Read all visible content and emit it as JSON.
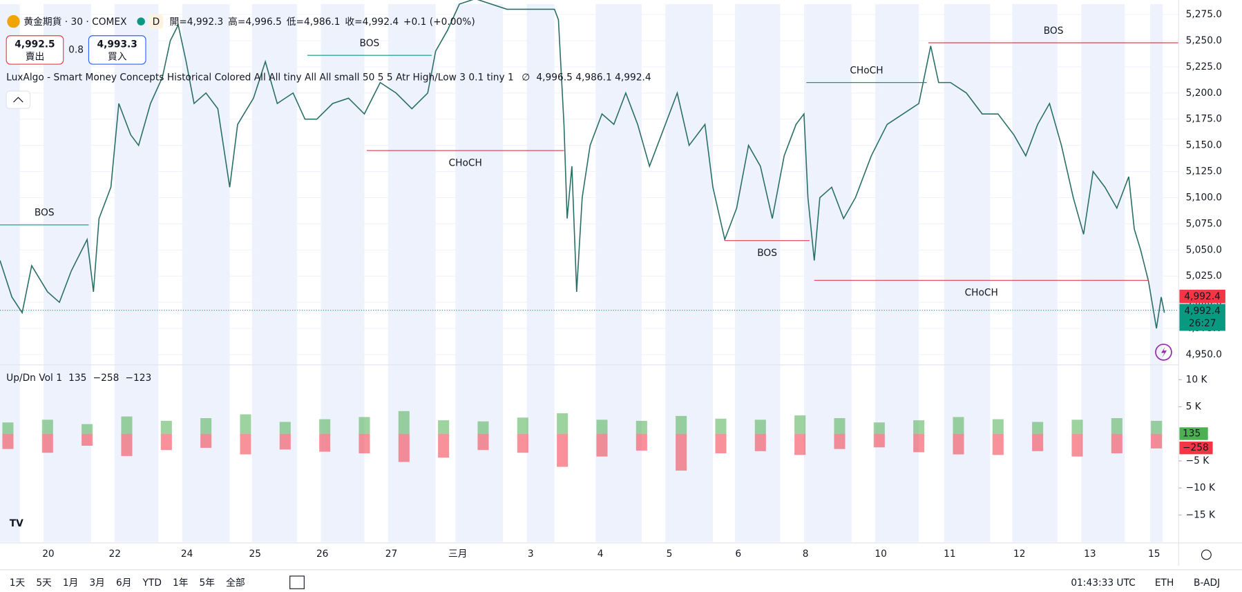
{
  "header": {
    "symbol": "黄金期貨 · 30 · COMEX",
    "badge": "D",
    "ohlc": [
      {
        "label": "開=",
        "value": "4,992.3"
      },
      {
        "label": "高=",
        "value": "4,996.5"
      },
      {
        "label": "低=",
        "value": "4,986.1"
      },
      {
        "label": "收=",
        "value": "4,992.4"
      }
    ],
    "change": "+0.1 (+0.00%)",
    "sell": {
      "price": "4,992.5",
      "label": "賣出"
    },
    "spread": "0.8",
    "buy": {
      "price": "4,993.3",
      "label": "買入"
    }
  },
  "indicator": {
    "text": "LuxAlgo - Smart Money Concepts Historical Colored All All tiny All All small 50 5 5 Atr High/Low 3 0.1 tiny 1",
    "symbol": "∅",
    "values": "4,996.5  4,986.1  4,992.4"
  },
  "price_chart": {
    "type": "line",
    "color": "#2a6f67",
    "xlim": [
      0,
      1488
    ],
    "ylim": [
      4941,
      5285
    ],
    "yticks": [
      {
        "value": 4950,
        "label": "4,950.0"
      },
      {
        "value": 4975,
        "label": "4,975.0"
      },
      {
        "value": 5000,
        "label": "5,000.0"
      },
      {
        "value": 5025,
        "label": "5,025.0"
      },
      {
        "value": 5050,
        "label": "5,050.0"
      },
      {
        "value": 5075,
        "label": "5,075.0"
      },
      {
        "value": 5100,
        "label": "5,100.0"
      },
      {
        "value": 5125,
        "label": "5,125.0"
      },
      {
        "value": 5150,
        "label": "5,150.0"
      },
      {
        "value": 5175,
        "label": "5,175.0"
      },
      {
        "value": 5200,
        "label": "5,200.0"
      },
      {
        "value": 5225,
        "label": "5,225.0"
      },
      {
        "value": 5250,
        "label": "5,250.0"
      },
      {
        "value": 5275,
        "label": "5,275.0"
      }
    ],
    "xticks": [
      {
        "value": 61,
        "label": "20"
      },
      {
        "value": 145,
        "label": "22"
      },
      {
        "value": 236,
        "label": "24"
      },
      {
        "value": 322,
        "label": "25"
      },
      {
        "value": 407,
        "label": "26"
      },
      {
        "value": 494,
        "label": "27"
      },
      {
        "value": 578,
        "label": "三月"
      },
      {
        "value": 670,
        "label": "3"
      },
      {
        "value": 758,
        "label": "4"
      },
      {
        "value": 845,
        "label": "5"
      },
      {
        "value": 932,
        "label": "6"
      },
      {
        "value": 1017,
        "label": "8"
      },
      {
        "value": 1112,
        "label": "10"
      },
      {
        "value": 1199,
        "label": "11"
      },
      {
        "value": 1287,
        "label": "12"
      },
      {
        "value": 1376,
        "label": "13"
      },
      {
        "value": 1457,
        "label": "15"
      }
    ],
    "x": [
      0,
      15,
      28,
      40,
      60,
      75,
      90,
      110,
      118,
      125,
      140,
      150,
      165,
      175,
      190,
      205,
      215,
      225,
      235,
      245,
      260,
      275,
      290,
      300,
      320,
      335,
      350,
      370,
      385,
      400,
      420,
      440,
      460,
      480,
      500,
      520,
      540,
      550,
      565,
      580,
      600,
      640,
      700,
      705,
      712,
      716,
      722,
      728,
      735,
      745,
      760,
      775,
      790,
      805,
      820,
      835,
      855,
      870,
      890,
      900,
      915,
      930,
      945,
      960,
      975,
      990,
      1005,
      1015,
      1020,
      1028,
      1035,
      1050,
      1065,
      1080,
      1100,
      1120,
      1140,
      1160,
      1175,
      1185,
      1200,
      1220,
      1240,
      1260,
      1280,
      1295,
      1310,
      1325,
      1340,
      1355,
      1368,
      1380,
      1395,
      1410,
      1425,
      1432,
      1440,
      1450,
      1460,
      1466,
      1470
    ],
    "values": [
      5040,
      5005,
      4990,
      5035,
      5010,
      5000,
      5030,
      5060,
      5010,
      5080,
      5110,
      5190,
      5160,
      5150,
      5190,
      5215,
      5250,
      5265,
      5230,
      5190,
      5200,
      5185,
      5110,
      5170,
      5195,
      5230,
      5190,
      5200,
      5175,
      5175,
      5190,
      5195,
      5180,
      5210,
      5200,
      5185,
      5200,
      5240,
      5260,
      5285,
      5290,
      5280,
      5280,
      5270,
      5170,
      5080,
      5130,
      5010,
      5100,
      5150,
      5180,
      5170,
      5200,
      5170,
      5130,
      5160,
      5200,
      5150,
      5170,
      5110,
      5060,
      5090,
      5150,
      5130,
      5080,
      5140,
      5170,
      5180,
      5100,
      5040,
      5100,
      5110,
      5080,
      5100,
      5140,
      5170,
      5180,
      5190,
      5245,
      5210,
      5210,
      5200,
      5180,
      5180,
      5160,
      5140,
      5170,
      5190,
      5150,
      5100,
      5065,
      5125,
      5110,
      5090,
      5120,
      5070,
      5050,
      5020,
      4975,
      5005,
      4990
    ],
    "structures": [
      {
        "label": "BOS",
        "x1": 0,
        "x2": 112,
        "price": 5074,
        "color": "#089981",
        "label_pos": "above"
      },
      {
        "label": "BOS",
        "x1": 388,
        "x2": 545,
        "price": 5236,
        "color": "#089981",
        "label_pos": "above"
      },
      {
        "label": "CHoCH",
        "x1": 463,
        "x2": 712,
        "price": 5145,
        "color": "#e03d4e",
        "label_pos": "below"
      },
      {
        "label": "BOS",
        "x1": 915,
        "x2": 1022,
        "price": 5059,
        "color": "#e03d4e",
        "label_pos": "below"
      },
      {
        "label": "CHoCH",
        "x1": 1018,
        "x2": 1170,
        "price": 5210,
        "color": "#089981",
        "label_pos": "above"
      },
      {
        "label": "CHoCH",
        "x1": 1028,
        "x2": 1450,
        "price": 5021,
        "color": "#e03d4e",
        "label_pos": "below"
      },
      {
        "label": "BOS",
        "x1": 1172,
        "x2": 1488,
        "price": 5248,
        "color": "#e03d4e",
        "label_pos": "above"
      }
    ],
    "last": {
      "value": 4992.4,
      "bid_label": "4,992.4",
      "label": "4,992.4",
      "countdown": "26:27"
    }
  },
  "volume_chart": {
    "title": "Up/Dn Vol 1",
    "values_text": [
      "135",
      "−258",
      "−123"
    ],
    "ylim": [
      -20000,
      12600
    ],
    "yticks": [
      {
        "value": 10000,
        "label": "10 K"
      },
      {
        "value": 5000,
        "label": "5 K"
      },
      {
        "value": -5000,
        "label": "−5 K"
      },
      {
        "value": -10000,
        "label": "−10 K"
      },
      {
        "value": -15000,
        "label": "−15 K"
      }
    ],
    "x": [
      10,
      60,
      110,
      160,
      210,
      260,
      310,
      360,
      410,
      460,
      510,
      560,
      610,
      660,
      710,
      760,
      810,
      860,
      910,
      960,
      1010,
      1060,
      1110,
      1160,
      1210,
      1260,
      1310,
      1360,
      1410,
      1460
    ],
    "series": [
      {
        "name": "Up",
        "color": "#4caf50",
        "values": [
          2100,
          2600,
          1800,
          3200,
          2400,
          2900,
          3600,
          2200,
          2700,
          3100,
          4200,
          2500,
          2300,
          3000,
          3800,
          2600,
          2400,
          3300,
          2800,
          2600,
          3400,
          2900,
          2100,
          2500,
          3100,
          2700,
          2200,
          2600,
          2900,
          2400
        ]
      },
      {
        "name": "Down",
        "color": "#f23645",
        "values": [
          -2800,
          -3500,
          -2200,
          -4100,
          -3000,
          -2600,
          -3800,
          -2900,
          -3300,
          -3600,
          -5200,
          -4400,
          -3000,
          -3500,
          -6100,
          -4200,
          -3100,
          -6800,
          -3600,
          -3200,
          -3900,
          -2800,
          -2500,
          -3400,
          -3800,
          -3900,
          -3200,
          -4200,
          -3600,
          -2700
        ]
      }
    ],
    "last_up": "135",
    "last_down": "−258"
  },
  "toolbar": {
    "ranges": [
      "1天",
      "5天",
      "1月",
      "3月",
      "6月",
      "YTD",
      "1年",
      "5年",
      "全部"
    ],
    "clock": "01:43:33 UTC",
    "session": "ETH",
    "adjust": "B-ADJ"
  }
}
